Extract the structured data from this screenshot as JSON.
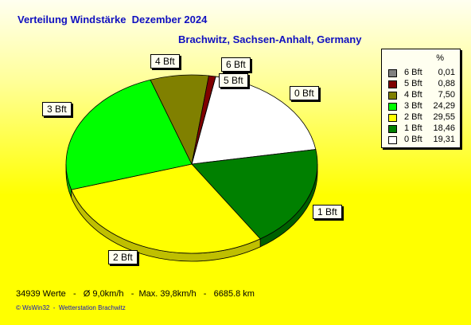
{
  "header": {
    "title": "Verteilung Windstärke  Dezember 2024",
    "subtitle": "Brachwitz, Sachsen-Anhalt, Germany"
  },
  "legend": {
    "unit_header": "%",
    "items": [
      {
        "name": "6 Bft",
        "value": "0,01",
        "color": "#808080"
      },
      {
        "name": "5 Bft",
        "value": "0,88",
        "color": "#800000"
      },
      {
        "name": "4 Bft",
        "value": "7,50",
        "color": "#808000"
      },
      {
        "name": "3 Bft",
        "value": "24,29",
        "color": "#00ff00"
      },
      {
        "name": "2 Bft",
        "value": "29,55",
        "color": "#ffff00"
      },
      {
        "name": "1 Bft",
        "value": "18,46",
        "color": "#008000"
      },
      {
        "name": "0 Bft",
        "value": "19,31",
        "color": "#ffffff"
      }
    ]
  },
  "chart_data": {
    "type": "pie",
    "title": "Verteilung Windstärke  Dezember 2024",
    "subtitle": "Brachwitz, Sachsen-Anhalt, Germany",
    "unit": "%",
    "slices": [
      {
        "label": "0 Bft",
        "value": 19.31,
        "color": "#ffffff"
      },
      {
        "label": "1 Bft",
        "value": 18.46,
        "color": "#008000"
      },
      {
        "label": "2 Bft",
        "value": 29.55,
        "color": "#ffff00"
      },
      {
        "label": "3 Bft",
        "value": 24.29,
        "color": "#00ff00"
      },
      {
        "label": "4 Bft",
        "value": 7.5,
        "color": "#808000"
      },
      {
        "label": "5 Bft",
        "value": 0.88,
        "color": "#800000"
      },
      {
        "label": "6 Bft",
        "value": 0.01,
        "color": "#808080"
      }
    ],
    "legend_position": "top-right"
  },
  "footer": {
    "stats": "34939 Werte   -   Ø 9,0km/h   -  Max. 39,8km/h   -   6685.8 km",
    "copyright": "© WsWin32  -  Wetterstation Brachwitz"
  }
}
